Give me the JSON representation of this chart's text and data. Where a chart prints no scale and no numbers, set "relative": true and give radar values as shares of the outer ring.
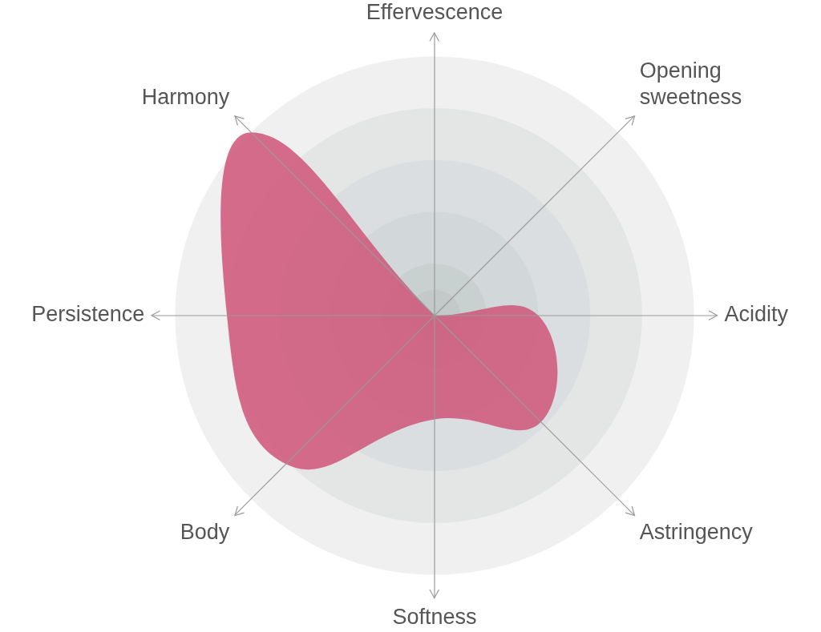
{
  "chart_data": {
    "type": "radar",
    "relative": true,
    "legend": false,
    "categories": [
      "Effervescence",
      "Opening\nsweetness",
      "Acidity",
      "Astringency",
      "Softness",
      "Body",
      "Persistence",
      "Harmony"
    ],
    "series": [
      {
        "color": "#d0567a",
        "values": [
          0,
          0,
          0.4,
          0.58,
          0.4,
          0.81,
          0.8,
          1
        ]
      }
    ]
  }
}
